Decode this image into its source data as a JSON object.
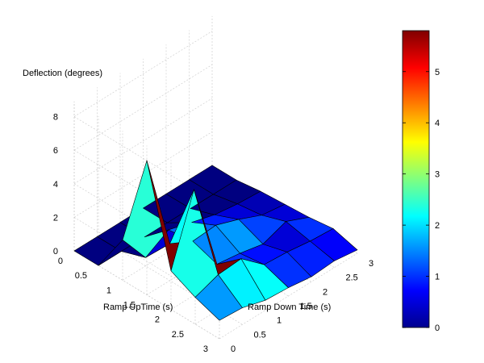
{
  "chart_data": {
    "type": "surface",
    "zlabel": "Deflection (degrees)",
    "xlabel": "Ramp UpTime (s)",
    "ylabel": "Ramp Down Time (s)",
    "x_ticks": [
      "0",
      "0.5",
      "1",
      "1.5",
      "2",
      "2.5",
      "3"
    ],
    "y_ticks": [
      "0",
      "0.5",
      "1",
      "1.5",
      "2",
      "2.5",
      "3"
    ],
    "z_ticks": [
      "0",
      "2",
      "4",
      "6",
      "8"
    ],
    "zlim": [
      0,
      8
    ],
    "x": [
      0,
      0.5,
      1,
      1.5,
      2,
      2.5,
      3
    ],
    "y": [
      0,
      0.5,
      1,
      1.5,
      2,
      2.5,
      3
    ],
    "z": [
      [
        0.0,
        0.0,
        0.0,
        0.0,
        0.0,
        0.0,
        0.0
      ],
      [
        0.0,
        0.0,
        0.0,
        0.0,
        0.0,
        0.0,
        0.0
      ],
      [
        2.4,
        0.5,
        1.3,
        0.9,
        0.5,
        0.3,
        0.2
      ],
      [
        8.0,
        2.2,
        1.5,
        1.6,
        1.1,
        0.5,
        0.3
      ],
      [
        2.3,
        6.3,
        1.0,
        0.8,
        0.5,
        1.0,
        0.4
      ],
      [
        1.6,
        2.1,
        2.2,
        1.0,
        0.9,
        0.7,
        0.6
      ],
      [
        1.1,
        1.0,
        0.6,
        0.5,
        0.3,
        0.4,
        0.2
      ]
    ],
    "colorbar": {
      "ticks": [
        "0",
        "1",
        "2",
        "3",
        "4",
        "5"
      ],
      "range": [
        0,
        5.8
      ],
      "colormap": "jet"
    },
    "grid": true
  }
}
